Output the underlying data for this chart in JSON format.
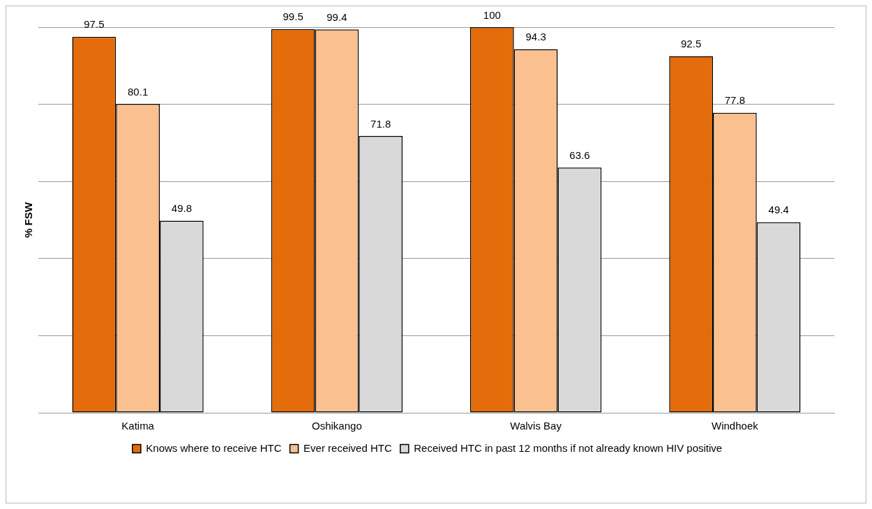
{
  "chart_data": {
    "type": "bar",
    "ylabel": "% FSW",
    "categories": [
      "Katima",
      "Oshikango",
      "Walvis Bay",
      "Windhoek"
    ],
    "series": [
      {
        "name": "Knows where to receive HTC",
        "color": "#e46c0a",
        "values": [
          97.5,
          99.5,
          100,
          92.5
        ]
      },
      {
        "name": "Ever received HTC",
        "color": "#fac090",
        "values": [
          80.1,
          99.4,
          94.3,
          77.8
        ]
      },
      {
        "name": "Received HTC in past 12 months if not already known HIV positive",
        "color": "#d9d9d9",
        "values": [
          49.8,
          71.8,
          63.6,
          49.4
        ]
      }
    ],
    "ylim": [
      0,
      100
    ],
    "tick_labels": "x",
    "grid": "y",
    "legend": "bottom",
    "data_labels": true
  }
}
